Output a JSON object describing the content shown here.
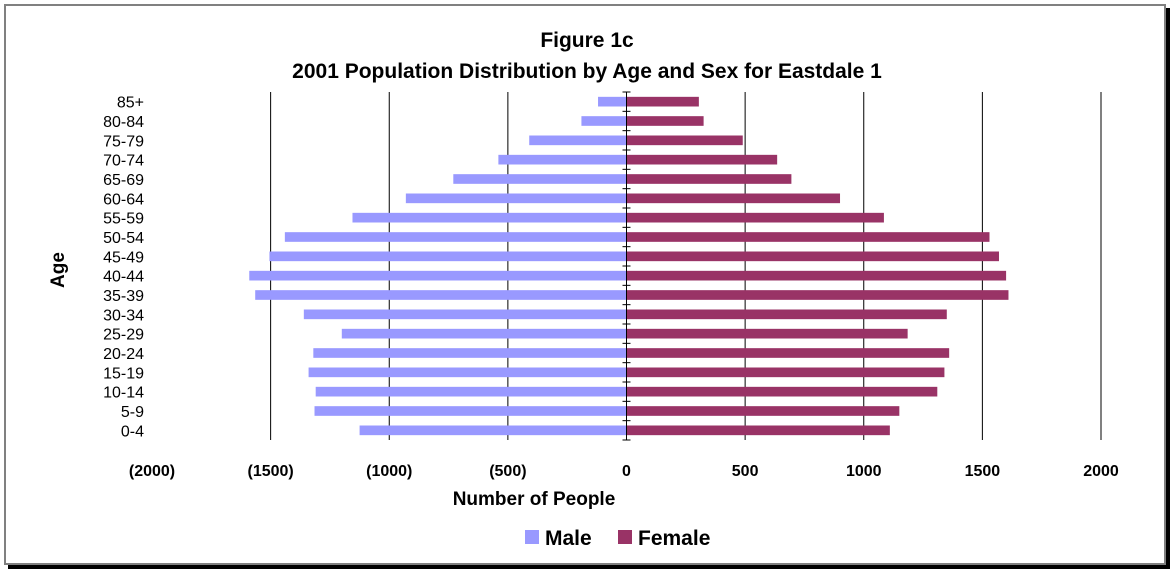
{
  "chart_data": {
    "type": "bar",
    "orientation": "horizontal",
    "title": "Figure 1c",
    "subtitle": "2001 Population Distribution by Age and Sex for Eastdale 1",
    "xlabel": "Number of People",
    "ylabel": "Age",
    "xlim": [
      -2000,
      2000
    ],
    "xticks": [
      -2000,
      -1500,
      -1000,
      -500,
      0,
      500,
      1000,
      1500,
      2000
    ],
    "xtick_labels": [
      "(2000)",
      "(1500)",
      "(1000)",
      "(500)",
      "0",
      "500",
      "1000",
      "1500",
      "2000"
    ],
    "categories": [
      "0-4",
      "5-9",
      "10-14",
      "15-19",
      "20-24",
      "25-29",
      "30-34",
      "35-39",
      "40-44",
      "45-49",
      "50-54",
      "55-59",
      "60-64",
      "65-69",
      "70-74",
      "75-79",
      "80-84",
      "85+"
    ],
    "series": [
      {
        "name": "Male",
        "color": "#9999ff",
        "values": [
          -1125,
          -1315,
          -1310,
          -1340,
          -1320,
          -1200,
          -1360,
          -1565,
          -1590,
          -1505,
          -1440,
          -1155,
          -930,
          -730,
          -540,
          -410,
          -190,
          -120
        ]
      },
      {
        "name": "Female",
        "color": "#993366",
        "values": [
          1110,
          1150,
          1310,
          1340,
          1360,
          1185,
          1350,
          1610,
          1600,
          1570,
          1530,
          1085,
          900,
          695,
          635,
          490,
          325,
          305
        ]
      }
    ],
    "grid": "vertical",
    "legend_position": "bottom"
  }
}
